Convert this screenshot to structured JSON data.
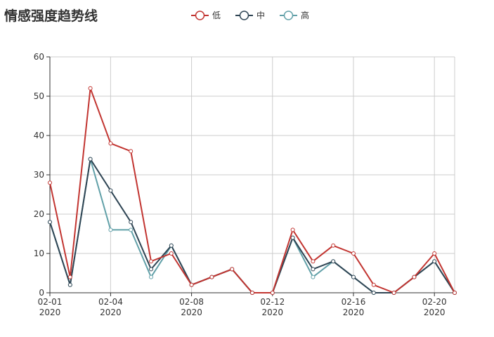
{
  "chart_data": {
    "type": "line",
    "title": "情感强度趋势线",
    "x": [
      "02-01",
      "02-02",
      "02-03",
      "02-04",
      "02-05",
      "02-06",
      "02-07",
      "02-08",
      "02-09",
      "02-10",
      "02-11",
      "02-12",
      "02-13",
      "02-14",
      "02-15",
      "02-16",
      "02-17",
      "02-18",
      "02-19",
      "02-20",
      "02-21"
    ],
    "x_tick_labels": [
      {
        "date": "02-01",
        "line1": "02-01",
        "line2": "2020"
      },
      {
        "date": "02-04",
        "line1": "02-04",
        "line2": "2020"
      },
      {
        "date": "02-08",
        "line1": "02-08",
        "line2": "2020"
      },
      {
        "date": "02-12",
        "line1": "02-12",
        "line2": "2020"
      },
      {
        "date": "02-16",
        "line1": "02-16",
        "line2": "2020"
      },
      {
        "date": "02-20",
        "line1": "02-20",
        "line2": "2020"
      }
    ],
    "y_ticks": [
      0,
      10,
      20,
      30,
      40,
      50,
      60
    ],
    "ylim": [
      0,
      60
    ],
    "grid": true,
    "legend_position": "top-center",
    "series": [
      {
        "name": "低",
        "color": "#c23531",
        "values": [
          28,
          4,
          52,
          38,
          36,
          8,
          10,
          2,
          4,
          6,
          0,
          0,
          16,
          8,
          12,
          10,
          2,
          0,
          4,
          10,
          0
        ]
      },
      {
        "name": "中",
        "color": "#2f4554",
        "values": [
          18,
          2,
          34,
          26,
          18,
          6,
          12,
          2,
          4,
          6,
          0,
          0,
          14,
          6,
          8,
          4,
          0,
          0,
          4,
          8,
          0
        ]
      },
      {
        "name": "高",
        "color": "#61a0a8",
        "values": [
          18,
          2,
          34,
          16,
          16,
          4,
          12,
          2,
          4,
          6,
          0,
          0,
          14,
          4,
          8,
          4,
          0,
          0,
          4,
          8,
          0
        ]
      }
    ]
  }
}
